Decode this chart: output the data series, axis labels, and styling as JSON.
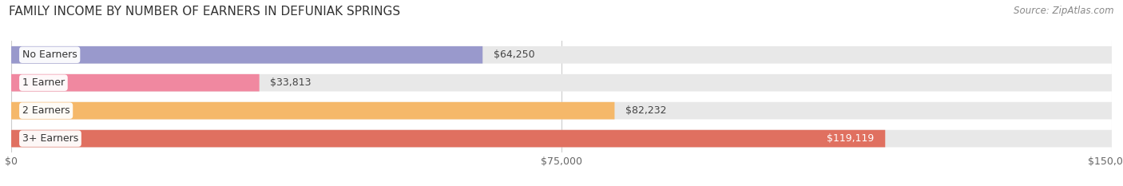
{
  "title": "FAMILY INCOME BY NUMBER OF EARNERS IN DEFUNIAK SPRINGS",
  "source": "Source: ZipAtlas.com",
  "categories": [
    "No Earners",
    "1 Earner",
    "2 Earners",
    "3+ Earners"
  ],
  "values": [
    64250,
    33813,
    82232,
    119119
  ],
  "bar_colors": [
    "#9999cc",
    "#f088a0",
    "#f5b86a",
    "#e07060"
  ],
  "value_labels": [
    "$64,250",
    "$33,813",
    "$82,232",
    "$119,119"
  ],
  "label_inside": [
    false,
    false,
    false,
    true
  ],
  "xlim": [
    0,
    150000
  ],
  "xticks": [
    0,
    75000,
    150000
  ],
  "xtick_labels": [
    "$0",
    "$75,000",
    "$150,000"
  ],
  "fig_bg_color": "#ffffff",
  "bar_bg_color": "#e8e8e8",
  "bar_row_bg": "#f5f5f5",
  "title_fontsize": 11,
  "source_fontsize": 8.5,
  "bar_label_fontsize": 9,
  "value_fontsize": 9,
  "tick_fontsize": 9
}
